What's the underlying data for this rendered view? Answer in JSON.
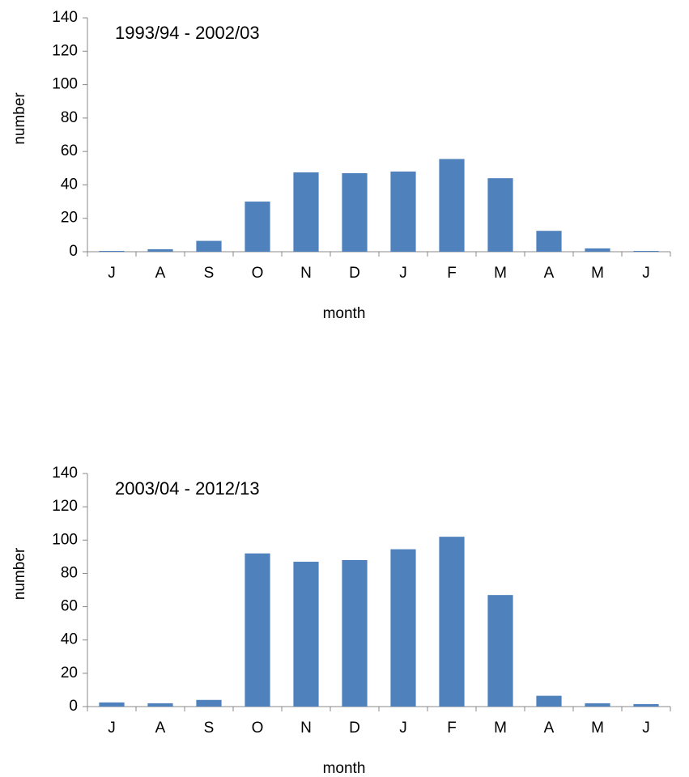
{
  "chart_data": [
    {
      "type": "bar",
      "title": "1993/94 - 2002/03",
      "x_label": "month",
      "y_label": "number",
      "categories": [
        "J",
        "A",
        "S",
        "O",
        "N",
        "D",
        "J",
        "F",
        "M",
        "A",
        "M",
        "J"
      ],
      "values": [
        0.5,
        1.5,
        6.5,
        30,
        47.5,
        47,
        48,
        55.5,
        44,
        12.5,
        2,
        0.5
      ],
      "color": "#4f81bd",
      "ylim": [
        0,
        140
      ],
      "yticks": [
        0,
        20,
        40,
        60,
        80,
        100,
        120,
        140
      ],
      "grid": false
    },
    {
      "type": "bar",
      "title": "2003/04 - 2012/13",
      "x_label": "month",
      "y_label": "number",
      "categories": [
        "J",
        "A",
        "S",
        "O",
        "N",
        "D",
        "J",
        "F",
        "M",
        "A",
        "M",
        "J"
      ],
      "values": [
        2.5,
        2,
        4,
        92,
        87,
        88,
        94.5,
        102,
        67,
        6.5,
        2,
        1.5
      ],
      "color": "#4f81bd",
      "ylim": [
        0,
        140
      ],
      "yticks": [
        0,
        20,
        40,
        60,
        80,
        100,
        120,
        140
      ],
      "grid": false
    }
  ]
}
